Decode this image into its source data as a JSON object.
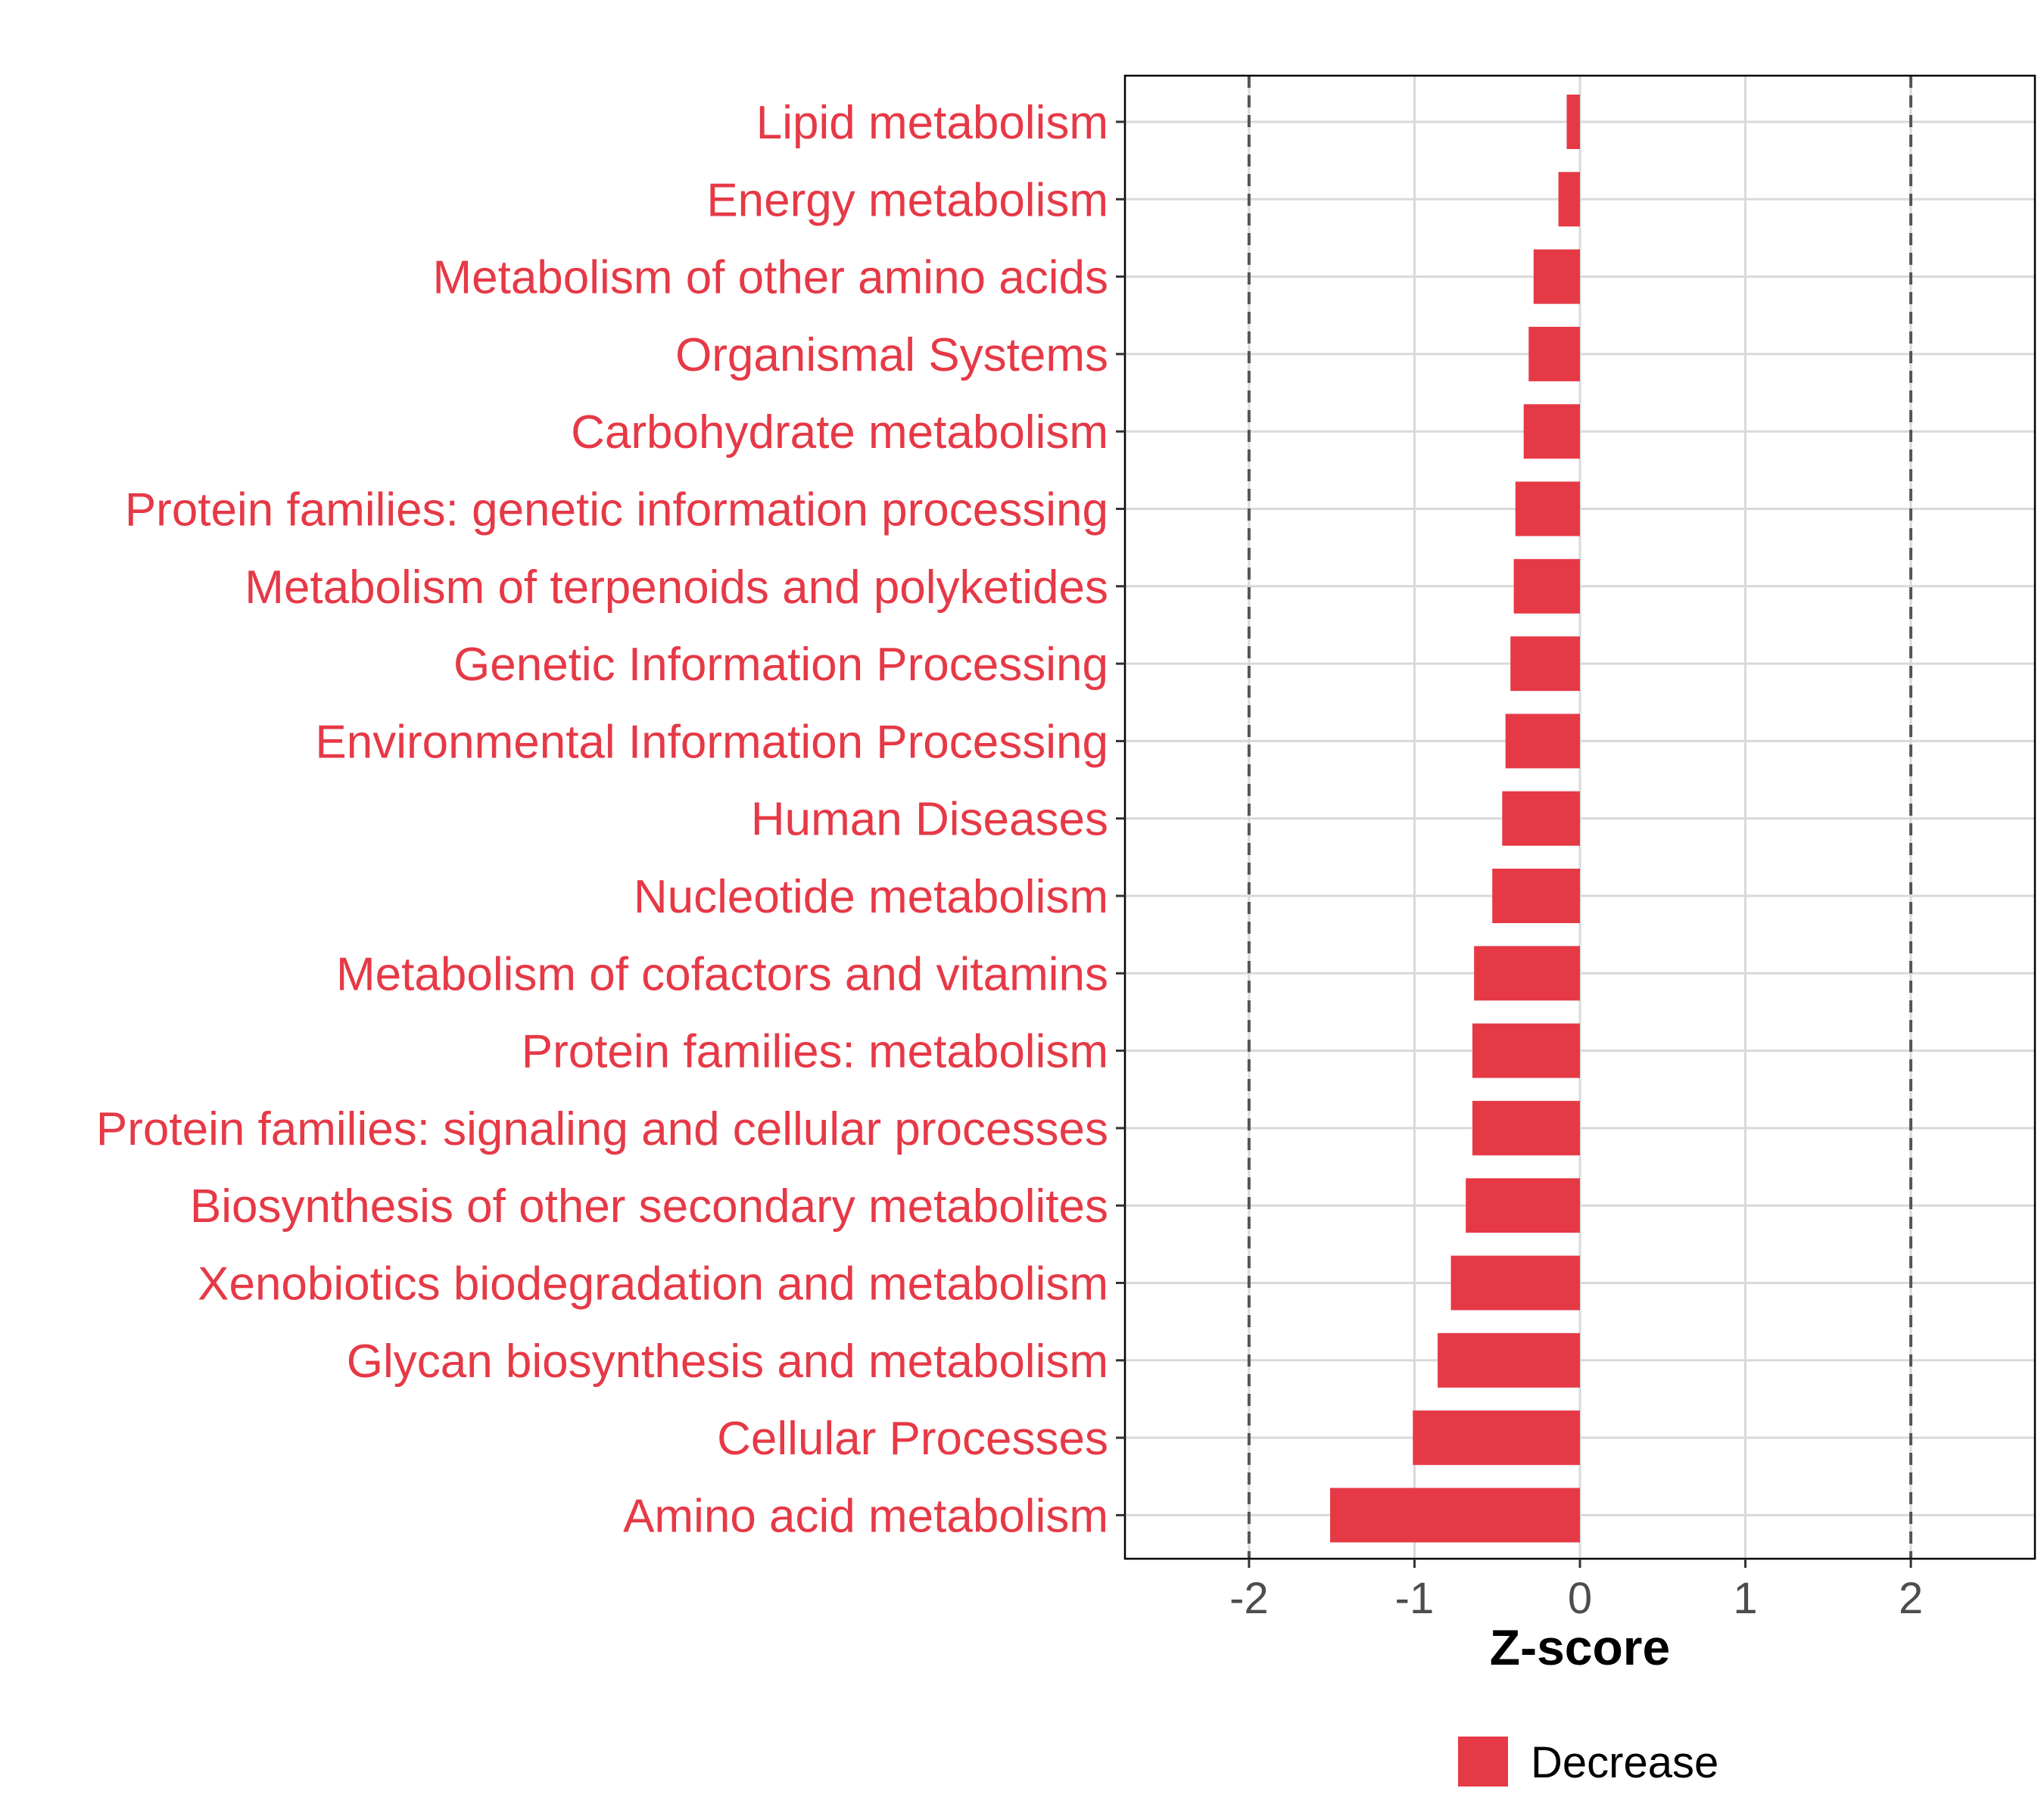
{
  "chart_data": {
    "type": "bar",
    "orientation": "horizontal",
    "categories": [
      "Lipid metabolism",
      "Energy metabolism",
      "Metabolism of other amino acids",
      "Organismal Systems",
      "Carbohydrate metabolism",
      "Protein families: genetic information processing",
      "Metabolism of terpenoids and polyketides",
      "Genetic Information Processing",
      "Environmental Information Processing",
      "Human Diseases",
      "Nucleotide metabolism",
      "Metabolism of cofactors and vitamins",
      "Protein families: metabolism",
      "Protein families: signaling and cellular processes",
      "Biosynthesis of other secondary metabolites",
      "Xenobiotics biodegradation and metabolism",
      "Glycan biosynthesis and metabolism",
      "Cellular Processes",
      "Amino acid metabolism"
    ],
    "series": [
      {
        "name": "Decrease",
        "color": "#E63946",
        "values": [
          -0.08,
          -0.13,
          -0.28,
          -0.31,
          -0.34,
          -0.39,
          -0.4,
          -0.42,
          -0.45,
          -0.47,
          -0.53,
          -0.64,
          -0.65,
          -0.65,
          -0.69,
          -0.78,
          -0.86,
          -1.01,
          -1.51
        ]
      }
    ],
    "xlabel": "Z-score",
    "ylabel": "",
    "xlim": [
      -2.75,
      2.75
    ],
    "xticks": [
      "-2",
      "-1",
      "0",
      "1",
      "2"
    ],
    "xtick_values": [
      -2,
      -1,
      0,
      1,
      2
    ],
    "reference_lines": [
      -2,
      2
    ],
    "grid": true,
    "legend_position": "bottom",
    "colors": {
      "bar": "#E63946",
      "category_label": "#E63946",
      "gridline": "#d9d9d9",
      "reference_line": "#555555",
      "panel_border": "#000000"
    }
  }
}
